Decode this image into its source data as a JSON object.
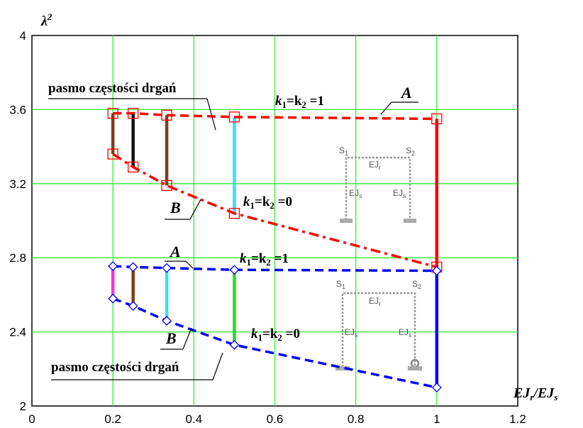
{
  "chart_data": {
    "type": "line",
    "xlabel": "EJr/EJs",
    "ylabel": "λ²",
    "xlim": [
      0,
      1.2
    ],
    "ylim": [
      2,
      4
    ],
    "xticks": [
      "0",
      "0.2",
      "0.4",
      "0.6",
      "0.8",
      "1",
      "1.2"
    ],
    "yticks": [
      "2",
      "2.4",
      "2.8",
      "3.2",
      "3.6",
      "4"
    ],
    "grid": true,
    "series": [
      {
        "label_ref": "A",
        "color": "#ff0000",
        "style": "dashed",
        "marker": "square",
        "x": [
          0.2,
          0.25,
          0.333,
          0.5,
          1.0
        ],
        "y": [
          3.58,
          3.58,
          3.57,
          3.56,
          3.55
        ]
      },
      {
        "label_ref": "B",
        "color": "#ff0000",
        "style": "dashdot",
        "marker": "square",
        "x": [
          0.2,
          0.25,
          0.333,
          0.5,
          1.0
        ],
        "y": [
          3.36,
          3.29,
          3.19,
          3.04,
          2.75
        ]
      },
      {
        "label_ref": "A",
        "color": "#0000ff",
        "style": "dashed",
        "marker": "diamond",
        "x": [
          0.2,
          0.25,
          0.333,
          0.5,
          1.0
        ],
        "y": [
          2.755,
          2.75,
          2.745,
          2.735,
          2.73
        ]
      },
      {
        "label_ref": "B",
        "color": "#0000ff",
        "style": "dashed",
        "marker": "diamond",
        "x": [
          0.2,
          0.25,
          0.333,
          0.5,
          1.0
        ],
        "y": [
          2.58,
          2.54,
          2.46,
          2.33,
          2.1
        ]
      }
    ],
    "bands": [
      {
        "x": 0.2,
        "y1": 3.36,
        "y2": 3.58,
        "color": "#7b3f1a"
      },
      {
        "x": 0.25,
        "y1": 3.29,
        "y2": 3.58,
        "color": "#111111"
      },
      {
        "x": 0.333,
        "y1": 3.19,
        "y2": 3.57,
        "color": "#7b3f1a"
      },
      {
        "x": 0.5,
        "y1": 3.04,
        "y2": 3.56,
        "color": "#33e0ff"
      },
      {
        "x": 1.0,
        "y1": 2.75,
        "y2": 3.55,
        "color": "#ff0000"
      },
      {
        "x": 0.2,
        "y1": 2.58,
        "y2": 2.755,
        "color": "#ff33cc"
      },
      {
        "x": 0.25,
        "y1": 2.54,
        "y2": 2.75,
        "color": "#7b3f1a"
      },
      {
        "x": 0.333,
        "y1": 2.46,
        "y2": 2.745,
        "color": "#33e0ff"
      },
      {
        "x": 0.5,
        "y1": 2.33,
        "y2": 2.735,
        "color": "#22dd22"
      },
      {
        "x": 1.0,
        "y1": 2.1,
        "y2": 2.73,
        "color": "#0000ff"
      }
    ],
    "annotations": {
      "band_label": "pasmo częstości drgań",
      "label_A": "A",
      "label_B": "B",
      "k1": "k",
      "sub1": "1",
      "eq1": "=k",
      "sub2": "2",
      "val1": " =1",
      "val0": " =0",
      "frame_S1": "S",
      "frame_S2": "S",
      "frame_EJr": "EJ",
      "frame_EJs": "EJ",
      "sub_r": "r",
      "sub_s": "s"
    }
  }
}
